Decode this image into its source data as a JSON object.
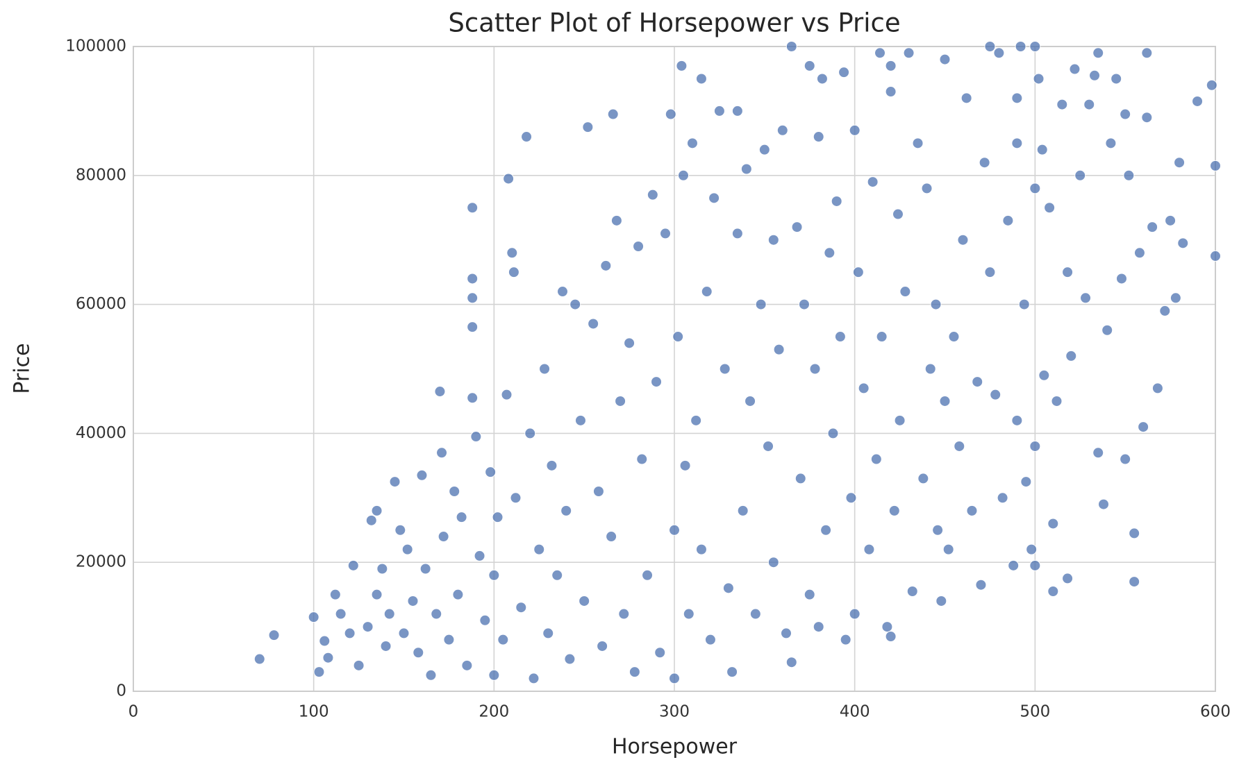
{
  "chart_data": {
    "type": "scatter",
    "title": "Scatter Plot of Horsepower vs Price",
    "x_label": "Horsepower",
    "y_label": "Price",
    "color": "#4c72b0",
    "grid": true,
    "xlim": [
      0,
      600
    ],
    "xticks": [
      0,
      100,
      200,
      300,
      400,
      500,
      600
    ],
    "ylim": [
      0,
      100000
    ],
    "yticks": [
      0,
      20000,
      40000,
      60000,
      80000,
      100000
    ],
    "x": [
      70,
      78,
      100,
      103,
      106,
      108,
      112,
      115,
      120,
      122,
      125,
      130,
      132,
      135,
      135,
      138,
      140,
      142,
      145,
      148,
      150,
      152,
      155,
      158,
      160,
      162,
      165,
      168,
      170,
      171,
      172,
      175,
      178,
      180,
      182,
      185,
      188,
      188,
      188,
      188,
      188,
      190,
      192,
      195,
      198,
      200,
      200,
      202,
      205,
      207,
      208,
      210,
      211,
      212,
      215,
      218,
      220,
      222,
      225,
      228,
      230,
      232,
      235,
      238,
      240,
      242,
      245,
      248,
      250,
      252,
      255,
      258,
      260,
      262,
      265,
      266,
      268,
      270,
      272,
      275,
      278,
      280,
      282,
      285,
      288,
      290,
      292,
      295,
      298,
      300,
      300,
      302,
      304,
      305,
      306,
      308,
      310,
      312,
      315,
      315,
      318,
      320,
      322,
      325,
      328,
      330,
      332,
      335,
      335,
      338,
      340,
      342,
      345,
      348,
      350,
      352,
      355,
      355,
      358,
      360,
      362,
      365,
      365,
      368,
      370,
      372,
      375,
      375,
      378,
      380,
      380,
      382,
      384,
      386,
      388,
      390,
      392,
      394,
      395,
      398,
      400,
      400,
      402,
      405,
      408,
      410,
      412,
      414,
      415,
      418,
      420,
      420,
      420,
      422,
      424,
      425,
      428,
      430,
      432,
      435,
      438,
      440,
      442,
      445,
      446,
      448,
      450,
      450,
      452,
      455,
      458,
      460,
      462,
      465,
      468,
      470,
      472,
      475,
      475,
      478,
      480,
      482,
      485,
      488,
      490,
      490,
      490,
      492,
      494,
      495,
      498,
      500,
      500,
      500,
      500,
      502,
      504,
      505,
      508,
      510,
      510,
      512,
      515,
      518,
      518,
      520,
      522,
      525,
      528,
      530,
      533,
      535,
      535,
      538,
      540,
      542,
      545,
      548,
      550,
      550,
      552,
      555,
      555,
      558,
      560,
      562,
      562,
      565,
      568,
      572,
      575,
      578,
      580,
      582,
      590,
      598,
      600,
      600
    ],
    "values": [
      5000,
      8700,
      11500,
      3000,
      7800,
      5200,
      15000,
      12000,
      9000,
      19500,
      4000,
      10000,
      26500,
      28000,
      15000,
      19000,
      7000,
      12000,
      32500,
      25000,
      9000,
      22000,
      14000,
      6000,
      33500,
      19000,
      2500,
      12000,
      46500,
      37000,
      24000,
      8000,
      31000,
      15000,
      27000,
      4000,
      75000,
      64000,
      61000,
      56500,
      45500,
      39500,
      21000,
      11000,
      34000,
      2500,
      18000,
      27000,
      8000,
      46000,
      79500,
      68000,
      65000,
      30000,
      13000,
      86000,
      40000,
      2000,
      22000,
      50000,
      9000,
      35000,
      18000,
      62000,
      28000,
      5000,
      60000,
      42000,
      14000,
      87500,
      57000,
      31000,
      7000,
      66000,
      24000,
      89500,
      73000,
      45000,
      12000,
      54000,
      3000,
      69000,
      36000,
      18000,
      77000,
      48000,
      6000,
      71000,
      89500,
      2000,
      25000,
      55000,
      97000,
      80000,
      35000,
      12000,
      85000,
      42000,
      95000,
      22000,
      62000,
      8000,
      76500,
      90000,
      50000,
      16000,
      3000,
      90000,
      71000,
      28000,
      81000,
      45000,
      12000,
      60000,
      84000,
      38000,
      70000,
      20000,
      53000,
      87000,
      9000,
      100000,
      4500,
      72000,
      33000,
      60000,
      97000,
      15000,
      50000,
      86000,
      10000,
      95000,
      25000,
      68000,
      40000,
      76000,
      55000,
      96000,
      8000,
      30000,
      87000,
      12000,
      65000,
      47000,
      22000,
      79000,
      36000,
      99000,
      55000,
      10000,
      97000,
      93000,
      8500,
      28000,
      74000,
      42000,
      62000,
      99000,
      15500,
      85000,
      33000,
      78000,
      50000,
      60000,
      25000,
      14000,
      98000,
      45000,
      22000,
      55000,
      38000,
      70000,
      92000,
      28000,
      48000,
      16500,
      82000,
      100000,
      65000,
      46000,
      99000,
      30000,
      73000,
      19500,
      92000,
      85000,
      42000,
      100000,
      60000,
      32500,
      22000,
      100000,
      78000,
      38000,
      19500,
      95000,
      84000,
      49000,
      75000,
      15500,
      26000,
      45000,
      91000,
      65000,
      17500,
      52000,
      96500,
      80000,
      61000,
      91000,
      95500,
      99000,
      37000,
      29000,
      56000,
      85000,
      95000,
      64000,
      89500,
      36000,
      80000,
      17000,
      24500,
      68000,
      41000,
      99000,
      89000,
      72000,
      47000,
      59000,
      73000,
      61000,
      82000,
      69500,
      91500,
      94000,
      81500,
      67500
    ]
  }
}
